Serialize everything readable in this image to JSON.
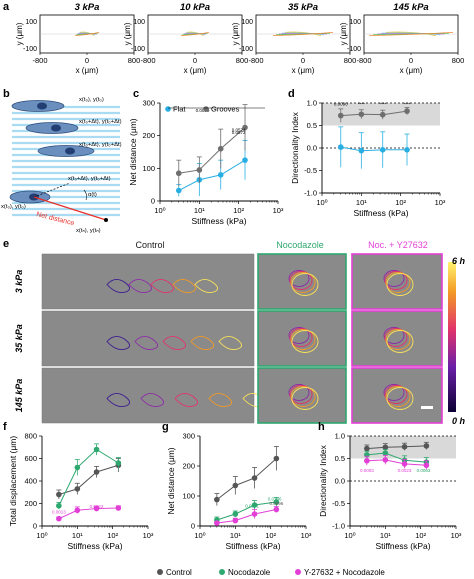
{
  "figure": {
    "panel_letters": [
      "a",
      "b",
      "c",
      "d",
      "e",
      "f",
      "g",
      "h"
    ],
    "stiffness_labels": [
      "3 kPa",
      "10 kPa",
      "35 kPa",
      "145 kPa"
    ],
    "track_axis": {
      "xlabel": "x (μm)",
      "ylabel": "y (μm)",
      "xticks": [
        "-800",
        "0",
        "800"
      ],
      "yticks": [
        "100",
        "-100"
      ]
    },
    "schematic": {
      "labels": [
        "x(t₀), y(t₀)",
        "x(t₀+Δt), y(t₀+Δt)",
        "x(t₀+Δt), y(t₀+Δt)",
        "α(t)",
        "x(tₙ), y(tₙ)",
        "x(t₀), y(t₀)",
        "Net distance"
      ],
      "net_distance_color": "#e8322b",
      "groove_color": "#a9dcf2"
    },
    "imaging": {
      "conditions": [
        "Control",
        "Nocodazole",
        "Noc. + Y27632"
      ],
      "rows": [
        "3 kPa",
        "35 kPa",
        "145 kPa"
      ],
      "time_bar_labels": [
        "6 h",
        "0 h"
      ],
      "condition_colors": [
        "#1a1a1a",
        "#2ea86f",
        "#e23fd6"
      ]
    },
    "legend_bottom": [
      "Control",
      "Nocodazole",
      "Y-27632 + Nocodazole"
    ]
  },
  "colors": {
    "control": "#555555",
    "nocodazole": "#2ea86f",
    "y27632": "#e23fd6",
    "flat": "#29aee3",
    "grooves": "#6e6e6e",
    "band": "#d9d9d9"
  },
  "chart_data": [
    {
      "panel": "c",
      "type": "scatter",
      "xscale": "log",
      "xlabel": "Stiffness (kPa)",
      "ylabel": "Net distance (μm)",
      "xlim": [
        1,
        1000
      ],
      "ylim": [
        0,
        300
      ],
      "xticks": [
        "10⁰",
        "10¹",
        "10²",
        "10³"
      ],
      "yticks": [
        "0",
        "100",
        "200",
        "300"
      ],
      "legend": "top-left",
      "x": [
        3,
        10,
        35,
        145
      ],
      "series": [
        {
          "name": "Flat",
          "values": [
            32,
            65,
            80,
            125
          ],
          "err": [
            18,
            50,
            45,
            60
          ]
        },
        {
          "name": "Grooves",
          "values": [
            85,
            95,
            160,
            225
          ],
          "err": [
            40,
            40,
            60,
            70
          ]
        }
      ],
      "annotations": [
        "0.0009",
        "0.0574",
        "0.0572"
      ]
    },
    {
      "panel": "d",
      "type": "scatter",
      "xscale": "log",
      "xlabel": "Stiffness (kPa)",
      "ylabel": "Directionality Index",
      "xlim": [
        1,
        1000
      ],
      "ylim": [
        -1.0,
        1.0
      ],
      "xticks": [
        "10⁰",
        "10¹",
        "10²",
        "10³"
      ],
      "yticks": [
        "-1.0",
        "-0.5",
        "0.0",
        "0.5",
        "1.0"
      ],
      "x": [
        3,
        10,
        35,
        145
      ],
      "series": [
        {
          "name": "Grooves",
          "values": [
            0.72,
            0.75,
            0.74,
            0.82
          ],
          "err": [
            0.15,
            0.1,
            0.1,
            0.08
          ]
        },
        {
          "name": "Flat",
          "values": [
            0.02,
            -0.06,
            -0.04,
            -0.04
          ],
          "err": [
            0.45,
            0.4,
            0.4,
            0.35
          ]
        }
      ],
      "annotations": [
        "0.0090",
        "****",
        "****",
        "****"
      ]
    },
    {
      "panel": "f",
      "type": "scatter",
      "xscale": "log",
      "xlabel": "Stiffness (kPa)",
      "ylabel": "Total displacement (μm)",
      "xlim": [
        1,
        1000
      ],
      "ylim": [
        0,
        800
      ],
      "xticks": [
        "10⁰",
        "10¹",
        "10²",
        "10³"
      ],
      "yticks": [
        "0",
        "200",
        "400",
        "600",
        "800"
      ],
      "x": [
        3,
        10,
        35,
        145
      ],
      "series": [
        {
          "name": "Control",
          "values": [
            280,
            330,
            480,
            540
          ],
          "err": [
            40,
            50,
            50,
            60
          ]
        },
        {
          "name": "Nocodazole",
          "values": [
            180,
            520,
            680,
            560
          ],
          "err": [
            30,
            70,
            50,
            50
          ]
        },
        {
          "name": "Y-27632 + Nocodazole",
          "values": [
            65,
            140,
            155,
            160
          ],
          "err": [
            15,
            30,
            20,
            20
          ]
        }
      ],
      "annotations": [
        "0.0013",
        "0.0022"
      ]
    },
    {
      "panel": "g",
      "type": "scatter",
      "xscale": "log",
      "xlabel": "Stiffness (kPa)",
      "ylabel": "Net distance (μm)",
      "xlim": [
        1,
        1000
      ],
      "ylim": [
        0,
        300
      ],
      "xticks": [
        "10⁰",
        "10¹",
        "10²",
        "10³"
      ],
      "yticks": [
        "0",
        "100",
        "200",
        "300"
      ],
      "x": [
        3,
        10,
        35,
        145
      ],
      "series": [
        {
          "name": "Control",
          "values": [
            88,
            135,
            160,
            225
          ],
          "err": [
            20,
            30,
            35,
            40
          ]
        },
        {
          "name": "Nocodazole",
          "values": [
            20,
            40,
            70,
            80
          ],
          "err": [
            10,
            10,
            15,
            15
          ]
        },
        {
          "name": "Y-27632 + Nocodazole",
          "values": [
            10,
            18,
            40,
            55
          ],
          "err": [
            5,
            8,
            15,
            10
          ]
        }
      ],
      "annotations": [
        "0.0096",
        "0.0231",
        "0.0146"
      ]
    },
    {
      "panel": "h",
      "type": "scatter",
      "xscale": "log",
      "xlabel": "Stiffness (kPa)",
      "ylabel": "Directionality Index",
      "xlim": [
        1,
        1000
      ],
      "ylim": [
        -1.0,
        1.0
      ],
      "xticks": [
        "10⁰",
        "10¹",
        "10²",
        "10³"
      ],
      "yticks": [
        "-1.0",
        "-0.5",
        "0.0",
        "0.5",
        "1.0"
      ],
      "x": [
        3,
        10,
        35,
        145
      ],
      "series": [
        {
          "name": "Control",
          "values": [
            0.72,
            0.75,
            0.76,
            0.78
          ],
          "err": [
            0.08,
            0.08,
            0.08,
            0.08
          ]
        },
        {
          "name": "Nocodazole",
          "values": [
            0.58,
            0.62,
            0.46,
            0.42
          ],
          "err": [
            0.08,
            0.08,
            0.1,
            0.1
          ]
        },
        {
          "name": "Y-27632 + Nocodazole",
          "values": [
            0.45,
            0.47,
            0.38,
            0.35
          ],
          "err": [
            0.1,
            0.1,
            0.1,
            0.1
          ]
        }
      ],
      "annotations": [
        "0.0003",
        "0.0023",
        "0.0063"
      ]
    }
  ]
}
